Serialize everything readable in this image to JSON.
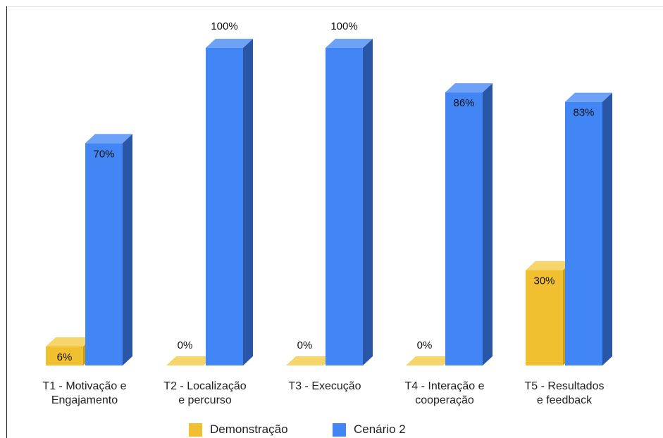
{
  "chart_data": {
    "type": "bar",
    "title": "",
    "xlabel": "",
    "ylabel": "",
    "ylim": [
      0,
      100
    ],
    "grid": false,
    "legend_position": "bottom",
    "categories": [
      [
        "T1 - Motivação e",
        "Engajamento"
      ],
      [
        "T2 - Localização",
        "e percurso"
      ],
      [
        "T3 - Execução"
      ],
      [
        "T4 - Interação e",
        "cooperação"
      ],
      [
        "T5 - Resultados",
        "e feedback"
      ]
    ],
    "series": [
      {
        "name": "Demonstração",
        "values": [
          6,
          0,
          0,
          0,
          30
        ],
        "labels": [
          "6%",
          "0%",
          "0%",
          "0%",
          "30%"
        ],
        "color": "#f0c030"
      },
      {
        "name": "Cenário 2",
        "values": [
          70,
          100,
          100,
          86,
          83
        ],
        "labels": [
          "70%",
          "100%",
          "100%",
          "86%",
          "83%"
        ],
        "color": "#4285f4"
      }
    ]
  }
}
